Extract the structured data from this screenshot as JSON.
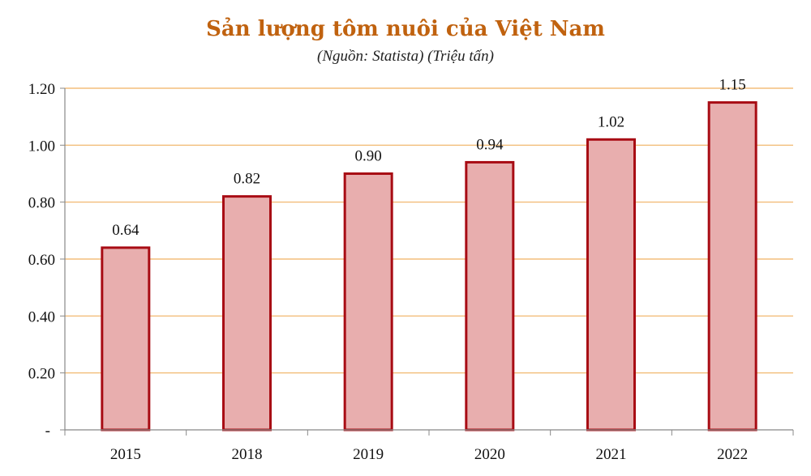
{
  "chart_data": {
    "type": "bar",
    "title": "Sản lượng tôm nuôi của Việt Nam",
    "subtitle": "(Nguồn: Statista) (Triệu tấn)",
    "categories": [
      "2015",
      "2018",
      "2019",
      "2020",
      "2021",
      "2022"
    ],
    "values": [
      0.64,
      0.82,
      0.9,
      0.94,
      1.02,
      1.15
    ],
    "data_labels": [
      "0.64",
      "0.82",
      "0.90",
      "0.94",
      "1.02",
      "1.15"
    ],
    "y_ticks": [
      {
        "value": 0,
        "label": "-"
      },
      {
        "value": 0.2,
        "label": "0.20"
      },
      {
        "value": 0.4,
        "label": "0.40"
      },
      {
        "value": 0.6,
        "label": "0.60"
      },
      {
        "value": 0.8,
        "label": "0.80"
      },
      {
        "value": 1.0,
        "label": "1.00"
      },
      {
        "value": 1.2,
        "label": "1.20"
      }
    ],
    "ylim": [
      0,
      1.2
    ],
    "grid": true,
    "legend": false,
    "colors": {
      "title": "#c0620f",
      "bar_fill": "#e8aeae",
      "bar_stroke": "#a80c14",
      "grid": "#f0b060",
      "axis": "#888888"
    }
  }
}
